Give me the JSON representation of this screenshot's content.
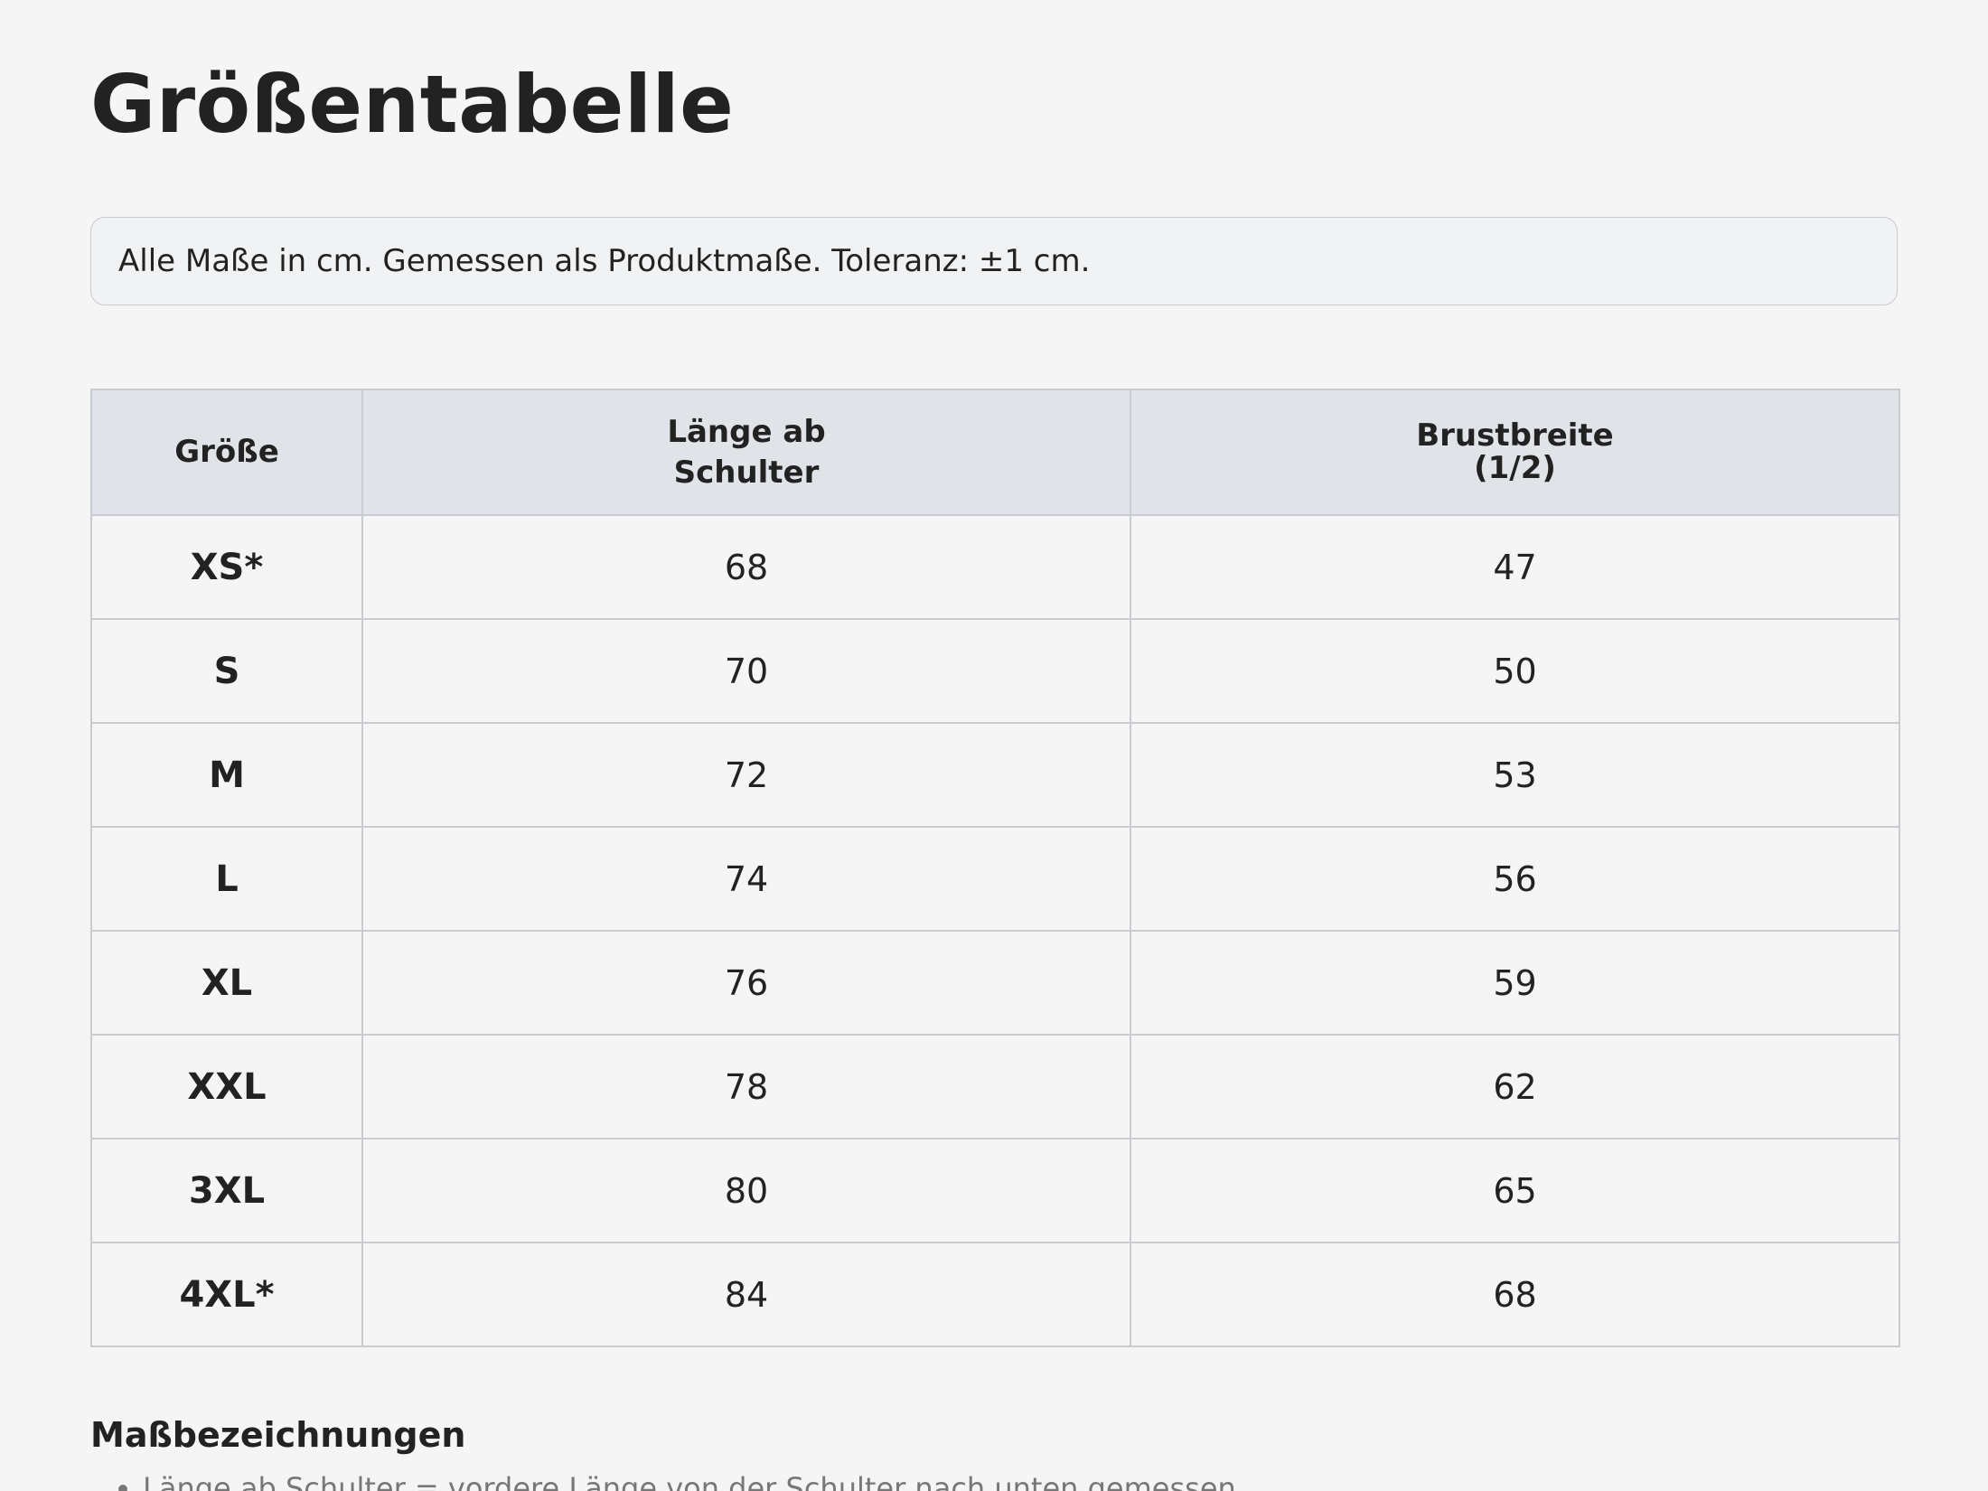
{
  "title": "Größentabelle",
  "note": "Alle Maße in cm. Gemessen als Produktmaße. Toleranz: ±1 cm.",
  "table": {
    "headers": [
      "Größe",
      "Länge ab\nSchulter",
      "Brustbreite\n(1/2)"
    ],
    "rows": [
      {
        "size": "XS*",
        "length": "68",
        "chest": "47"
      },
      {
        "size": "S",
        "length": "70",
        "chest": "50"
      },
      {
        "size": "M",
        "length": "72",
        "chest": "53"
      },
      {
        "size": "L",
        "length": "74",
        "chest": "56"
      },
      {
        "size": "XL",
        "length": "76",
        "chest": "59"
      },
      {
        "size": "XXL",
        "length": "78",
        "chest": "62"
      },
      {
        "size": "3XL",
        "length": "80",
        "chest": "65"
      },
      {
        "size": "4XL*",
        "length": "84",
        "chest": "68"
      }
    ]
  },
  "definitions": {
    "heading": "Maßbezeichnungen",
    "items": [
      "Länge ab Schulter = vordere Länge von der Schulter nach unten gemessen"
    ]
  }
}
